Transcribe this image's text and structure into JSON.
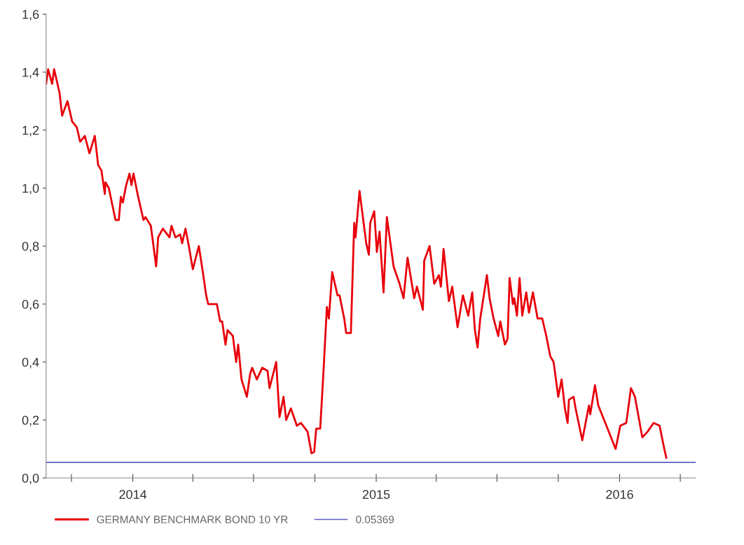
{
  "chart_data": {
    "type": "line",
    "x": [
      "2013-08-24",
      "2013-08-27",
      "2013-09-02",
      "2013-09-05",
      "2013-09-13",
      "2013-09-17",
      "2013-09-25",
      "2013-10-02",
      "2013-10-09",
      "2013-10-14",
      "2013-10-21",
      "2013-10-28",
      "2013-11-05",
      "2013-11-10",
      "2013-11-15",
      "2013-11-20",
      "2013-11-21",
      "2013-11-26",
      "2013-12-06",
      "2013-12-11",
      "2013-12-14",
      "2013-12-17",
      "2013-12-22",
      "2013-12-27",
      "2013-12-30",
      "2014-01-02",
      "2014-01-09",
      "2014-01-17",
      "2014-01-20",
      "2014-01-28",
      "2014-02-05",
      "2014-02-08",
      "2014-02-15",
      "2014-02-25",
      "2014-02-28",
      "2014-03-06",
      "2014-03-13",
      "2014-03-16",
      "2014-03-21",
      "2014-03-26",
      "2014-04-01",
      "2014-04-10",
      "2014-04-16",
      "2014-04-21",
      "2014-04-24",
      "2014-05-07",
      "2014-05-12",
      "2014-05-15",
      "2014-05-20",
      "2014-05-23",
      "2014-05-31",
      "2014-06-05",
      "2014-06-08",
      "2014-06-13",
      "2014-06-21",
      "2014-06-26",
      "2014-06-29",
      "2014-07-06",
      "2014-07-14",
      "2014-07-22",
      "2014-07-25",
      "2014-08-04",
      "2014-08-09",
      "2014-08-15",
      "2014-08-19",
      "2014-08-26",
      "2014-09-04",
      "2014-09-10",
      "2014-09-20",
      "2014-09-26",
      "2014-09-30",
      "2014-10-03",
      "2014-10-09",
      "2014-10-14",
      "2014-10-19",
      "2014-10-22",
      "2014-10-27",
      "2014-11-04",
      "2014-11-07",
      "2014-11-14",
      "2014-11-17",
      "2014-11-24",
      "2014-11-29",
      "2014-12-01",
      "2014-12-07",
      "2014-12-17",
      "2014-12-21",
      "2014-12-23",
      "2014-12-29",
      "2015-01-02",
      "2015-01-06",
      "2015-01-12",
      "2015-01-17",
      "2015-01-27",
      "2015-02-05",
      "2015-02-11",
      "2015-02-17",
      "2015-02-27",
      "2015-03-03",
      "2015-03-12",
      "2015-03-14",
      "2015-03-22",
      "2015-03-29",
      "2015-04-05",
      "2015-04-08",
      "2015-04-12",
      "2015-04-20",
      "2015-04-25",
      "2015-05-03",
      "2015-05-11",
      "2015-05-19",
      "2015-05-25",
      "2015-05-29",
      "2015-06-02",
      "2015-06-06",
      "2015-06-16",
      "2015-06-20",
      "2015-06-26",
      "2015-07-03",
      "2015-07-06",
      "2015-07-13",
      "2015-07-17",
      "2015-07-20",
      "2015-07-25",
      "2015-07-27",
      "2015-07-31",
      "2015-08-04",
      "2015-08-08",
      "2015-08-14",
      "2015-08-18",
      "2015-08-24",
      "2015-08-31",
      "2015-09-07",
      "2015-09-13",
      "2015-09-19",
      "2015-09-24",
      "2015-10-01",
      "2015-10-06",
      "2015-10-11",
      "2015-10-15",
      "2015-10-17",
      "2015-10-24",
      "2015-10-27",
      "2015-11-06",
      "2015-11-16",
      "2015-11-18",
      "2015-11-25",
      "2015-11-30",
      "2015-12-14",
      "2015-12-26",
      "2016-01-02",
      "2016-01-11",
      "2016-01-18",
      "2016-01-24",
      "2016-02-04",
      "2016-02-12",
      "2016-02-21",
      "2016-03-01",
      "2016-03-08",
      "2016-03-11"
    ],
    "series": [
      {
        "name": "GERMANY BENCHMARK BOND 10 YR",
        "color": "#e8000b",
        "values": [
          1.36,
          1.41,
          1.36,
          1.41,
          1.33,
          1.25,
          1.3,
          1.23,
          1.21,
          1.16,
          1.18,
          1.12,
          1.18,
          1.08,
          1.06,
          0.98,
          1.02,
          1.0,
          0.89,
          0.89,
          0.97,
          0.95,
          1.01,
          1.05,
          1.01,
          1.05,
          0.97,
          0.89,
          0.9,
          0.87,
          0.73,
          0.83,
          0.86,
          0.83,
          0.87,
          0.83,
          0.84,
          0.81,
          0.86,
          0.8,
          0.72,
          0.8,
          0.71,
          0.63,
          0.6,
          0.6,
          0.54,
          0.54,
          0.46,
          0.51,
          0.49,
          0.4,
          0.46,
          0.34,
          0.28,
          0.36,
          0.38,
          0.34,
          0.38,
          0.37,
          0.31,
          0.4,
          0.21,
          0.28,
          0.2,
          0.24,
          0.18,
          0.19,
          0.16,
          0.085,
          0.09,
          0.17,
          0.17,
          0.37,
          0.59,
          0.55,
          0.71,
          0.63,
          0.63,
          0.55,
          0.5,
          0.5,
          0.88,
          0.83,
          0.99,
          0.81,
          0.77,
          0.88,
          0.92,
          0.78,
          0.85,
          0.64,
          0.9,
          0.73,
          0.67,
          0.62,
          0.76,
          0.62,
          0.66,
          0.58,
          0.75,
          0.8,
          0.67,
          0.7,
          0.66,
          0.79,
          0.61,
          0.66,
          0.52,
          0.63,
          0.56,
          0.64,
          0.51,
          0.45,
          0.55,
          0.7,
          0.62,
          0.55,
          0.49,
          0.54,
          0.46,
          0.48,
          0.69,
          0.6,
          0.62,
          0.56,
          0.69,
          0.56,
          0.64,
          0.57,
          0.64,
          0.55,
          0.55,
          0.49,
          0.42,
          0.4,
          0.28,
          0.34,
          0.24,
          0.19,
          0.27,
          0.28,
          0.24,
          0.13,
          0.25,
          0.22,
          0.32,
          0.25,
          0.17,
          0.1,
          0.18,
          0.19,
          0.31,
          0.28,
          0.14,
          0.16,
          0.19,
          0.18,
          0.1,
          0.07
        ]
      }
    ],
    "ref_lines": [
      {
        "axis": "y",
        "value": 0.05369,
        "label": "0.05369",
        "color": "#6060c8"
      }
    ],
    "xlim": [
      "2013-08-24",
      "2016-04-24"
    ],
    "xticks": [
      {
        "value": "2013-10-01",
        "label": null
      },
      {
        "value": "2014-01-01",
        "label": "2014"
      },
      {
        "value": "2014-04-01",
        "label": null
      },
      {
        "value": "2014-07-01",
        "label": null
      },
      {
        "value": "2014-10-01",
        "label": null
      },
      {
        "value": "2015-01-01",
        "label": "2015"
      },
      {
        "value": "2015-04-01",
        "label": null
      },
      {
        "value": "2015-07-01",
        "label": null
      },
      {
        "value": "2015-10-01",
        "label": null
      },
      {
        "value": "2016-01-01",
        "label": "2016"
      },
      {
        "value": "2016-04-01",
        "label": null
      }
    ],
    "ylim": [
      0,
      1.6
    ],
    "yticks": [
      {
        "value": 0,
        "label": "0,0"
      },
      {
        "value": 0.2,
        "label": "0,2"
      },
      {
        "value": 0.4,
        "label": "0,4"
      },
      {
        "value": 0.6,
        "label": "0,6"
      },
      {
        "value": 0.8,
        "label": "0,8"
      },
      {
        "value": 1.0,
        "label": "1,0"
      },
      {
        "value": 1.2,
        "label": "1,2"
      },
      {
        "value": 1.4,
        "label": "1,4"
      },
      {
        "value": 1.6,
        "label": "1,6"
      }
    ],
    "grid": false,
    "legend": "bottom",
    "marker": "none",
    "line_style": "solid"
  }
}
